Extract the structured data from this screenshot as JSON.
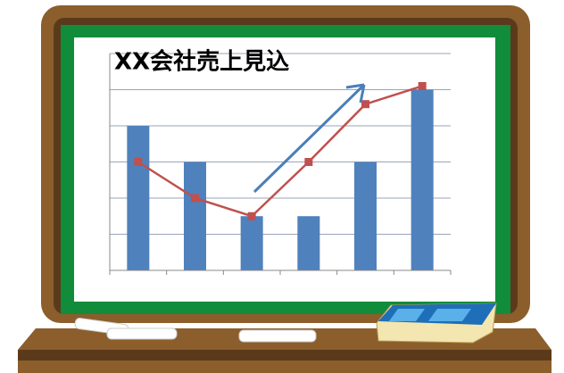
{
  "chart_data": {
    "type": "combo",
    "title": "XX会社売上見込",
    "categories": [
      null,
      null,
      null,
      null,
      null,
      null
    ],
    "series": [
      {
        "type": "bar",
        "color": "#4f81bd",
        "values": [
          4,
          3,
          1.5,
          1.5,
          3,
          5
        ]
      },
      {
        "type": "line",
        "color": "#c0504d",
        "values": [
          3,
          2,
          1.5,
          3,
          4.6,
          5.1
        ]
      }
    ],
    "ylim": [
      0,
      6
    ],
    "yticks": [
      0,
      1,
      2,
      3,
      4,
      5,
      6
    ],
    "grid": true
  }
}
